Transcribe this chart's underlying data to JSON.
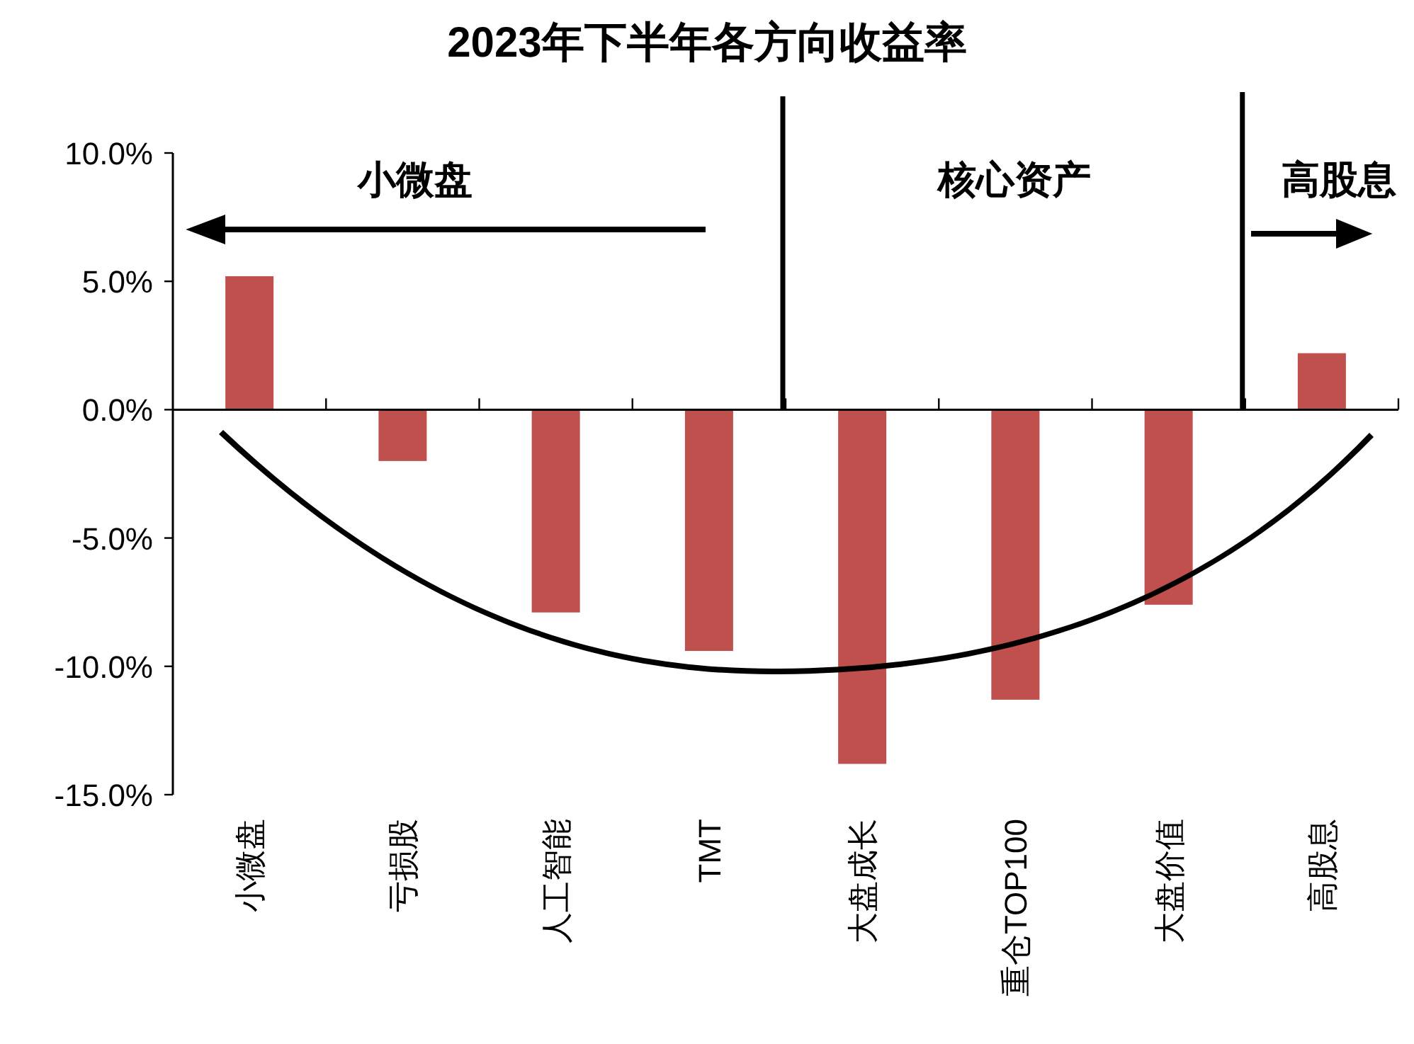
{
  "chart_data": {
    "type": "bar",
    "title": "2023年下半年各方向收益率",
    "categories": [
      "小微盘",
      "亏损股",
      "人工智能",
      "TMT",
      "大盘成长",
      "重仓TOP100",
      "大盘价值",
      "高股息"
    ],
    "values": [
      5.2,
      -2.0,
      -7.9,
      -9.4,
      -13.8,
      -11.3,
      -7.6,
      2.2
    ],
    "color": "#c0504d",
    "ylim": [
      -15,
      10
    ],
    "yticks": [
      {
        "value": -15,
        "label": "-15.0%"
      },
      {
        "value": -10,
        "label": "-10.0%"
      },
      {
        "value": -5,
        "label": "-5.0%"
      },
      {
        "value": 0,
        "label": "0.0%"
      },
      {
        "value": 5,
        "label": "5.0%"
      },
      {
        "value": 10,
        "label": "10.0%"
      }
    ],
    "annotations": [
      "小微盘",
      "核心资产",
      "高股息"
    ]
  }
}
